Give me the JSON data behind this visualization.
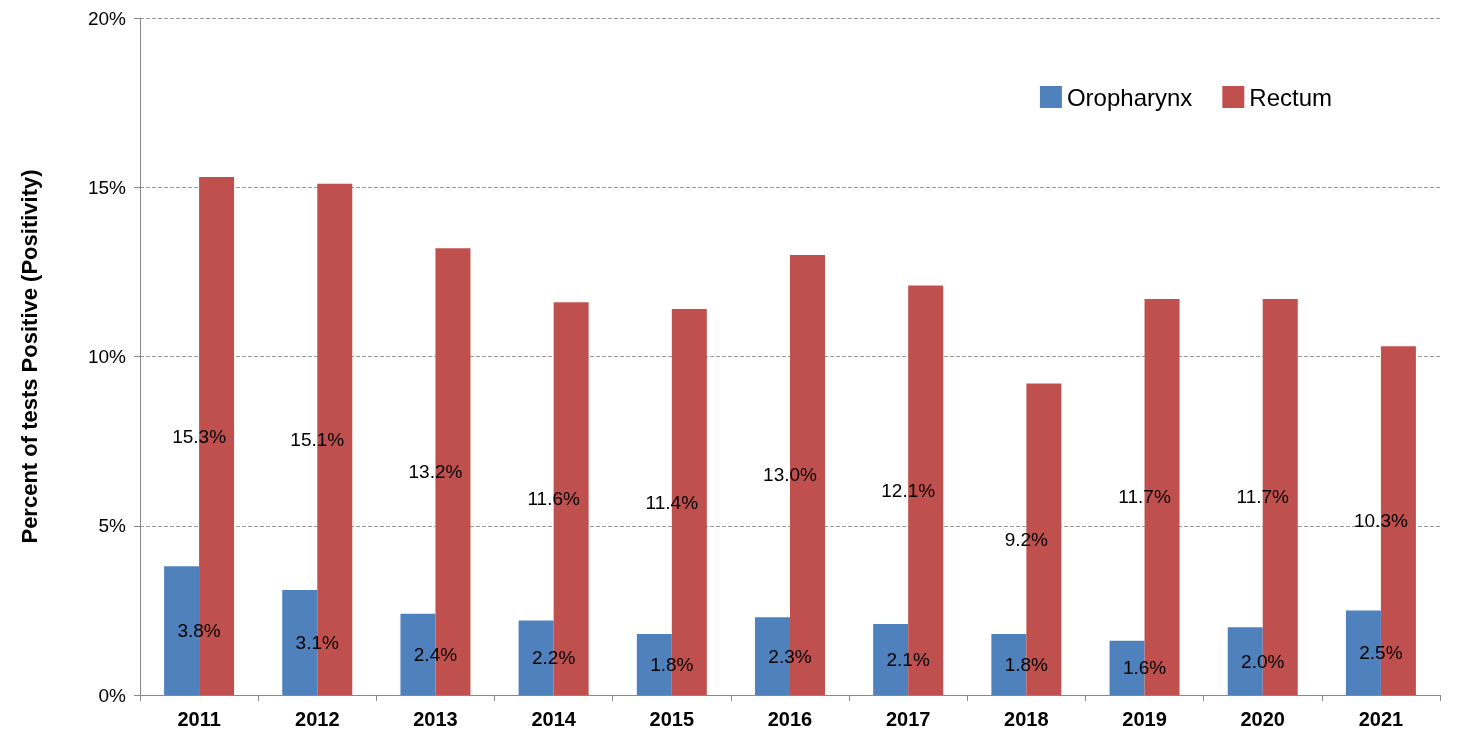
{
  "chart_data": {
    "type": "bar",
    "ylabel": "Percent of tests Positive (Positivity)",
    "categories": [
      "2011",
      "2012",
      "2013",
      "2014",
      "2015",
      "2016",
      "2017",
      "2018",
      "2019",
      "2020",
      "2021"
    ],
    "series": [
      {
        "name": "Oropharynx",
        "color": "#4f81bd",
        "values": [
          3.8,
          3.1,
          2.4,
          2.2,
          1.8,
          2.3,
          2.1,
          1.8,
          1.6,
          2.0,
          2.5
        ],
        "value_labels": [
          "3.8%",
          "3.1%",
          "2.4%",
          "2.2%",
          "1.8%",
          "2.3%",
          "2.1%",
          "1.8%",
          "1.6%",
          "2.0%",
          "2.5%"
        ]
      },
      {
        "name": "Rectum",
        "color": "#c0504d",
        "values": [
          15.3,
          15.1,
          13.2,
          11.6,
          11.4,
          13.0,
          12.1,
          9.2,
          11.7,
          11.7,
          10.3
        ],
        "value_labels": [
          "15.3%",
          "15.1%",
          "13.2%",
          "11.6%",
          "11.4%",
          "13.0%",
          "12.1%",
          "9.2%",
          "11.7%",
          "11.7%",
          "10.3%"
        ]
      }
    ],
    "ylim": [
      0,
      20
    ],
    "yticks": [
      {
        "value": 0,
        "label": "0%"
      },
      {
        "value": 5,
        "label": "5%"
      },
      {
        "value": 10,
        "label": "10%"
      },
      {
        "value": 15,
        "label": "15%"
      },
      {
        "value": 20,
        "label": "20%"
      }
    ],
    "grid": "y",
    "legend": "top right"
  }
}
